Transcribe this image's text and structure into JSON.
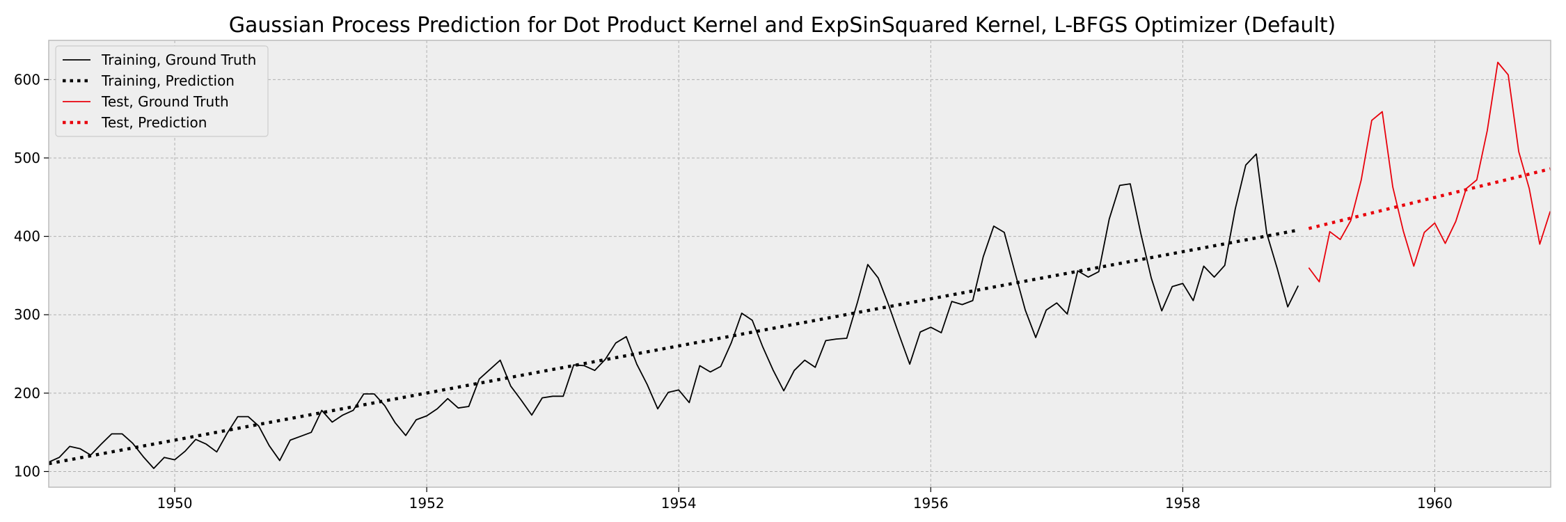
{
  "chart_data": {
    "type": "line",
    "title": "Gaussian Process Prediction for Dot Product Kernel and ExpSinSquared Kernel, L-BFGS Optimizer (Default)",
    "xlabel": "",
    "ylabel": "",
    "xlim": [
      1949.0,
      1960.92
    ],
    "ylim": [
      80,
      650
    ],
    "x_ticks": [
      1950,
      1952,
      1954,
      1956,
      1958,
      1960
    ],
    "x_tick_labels": [
      "1950",
      "1952",
      "1954",
      "1956",
      "1958",
      "1960"
    ],
    "y_ticks": [
      100,
      200,
      300,
      400,
      500,
      600
    ],
    "y_tick_labels": [
      "100",
      "200",
      "300",
      "400",
      "500",
      "600"
    ],
    "grid": true,
    "legend_position": "top-left",
    "series": [
      {
        "name": "Training, Ground Truth",
        "color": "#000000",
        "style": "solid",
        "x_start": 1949.0,
        "x_step": 0.083333,
        "values": [
          112,
          118,
          132,
          129,
          121,
          135,
          148,
          148,
          136,
          119,
          104,
          118,
          115,
          126,
          141,
          135,
          125,
          149,
          170,
          170,
          158,
          133,
          114,
          140,
          145,
          150,
          178,
          163,
          172,
          178,
          199,
          199,
          184,
          162,
          146,
          166,
          171,
          180,
          193,
          181,
          183,
          218,
          230,
          242,
          209,
          191,
          172,
          194,
          196,
          196,
          236,
          235,
          229,
          243,
          264,
          272,
          237,
          211,
          180,
          201,
          204,
          188,
          235,
          227,
          234,
          264,
          302,
          293,
          259,
          229,
          203,
          229,
          242,
          233,
          267,
          269,
          270,
          315,
          364,
          347,
          312,
          274,
          237,
          278,
          284,
          277,
          317,
          313,
          318,
          374,
          413,
          405,
          355,
          306,
          271,
          306,
          315,
          301,
          356,
          348,
          355,
          422,
          465,
          467,
          404,
          347,
          305,
          336,
          340,
          318,
          362,
          348,
          363,
          435,
          491,
          505,
          404,
          359,
          310,
          337
        ]
      },
      {
        "name": "Training, Prediction",
        "color": "#000000",
        "style": "dotted",
        "x": [
          1949.0,
          1958.917
        ],
        "values": [
          110,
          408
        ]
      },
      {
        "name": "Test, Ground Truth",
        "color": "#e8000b",
        "style": "solid",
        "x_start": 1959.0,
        "x_step": 0.083333,
        "values": [
          360,
          342,
          406,
          396,
          420,
          472,
          548,
          559,
          463,
          407,
          362,
          405,
          417,
          391,
          419,
          461,
          472,
          535,
          622,
          606,
          508,
          461,
          390,
          432
        ]
      },
      {
        "name": "Test, Prediction",
        "color": "#e8000b",
        "style": "dotted",
        "x": [
          1959.0,
          1960.917
        ],
        "values": [
          410,
          486
        ]
      }
    ]
  }
}
